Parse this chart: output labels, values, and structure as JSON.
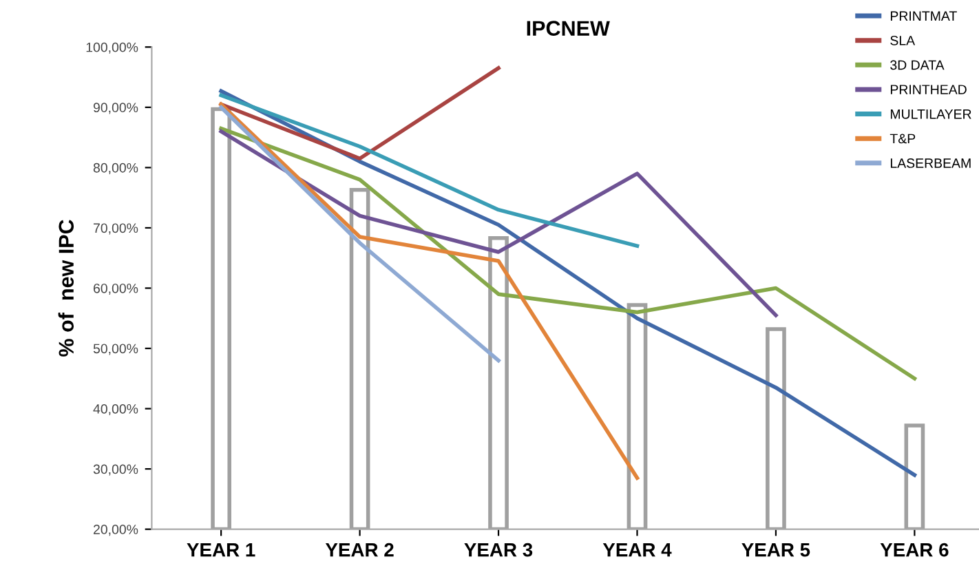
{
  "chart_data": {
    "type": "line",
    "title": "IPCNEW",
    "ylabel": "% of  new IPC",
    "categories": [
      "YEAR 1",
      "YEAR 2",
      "YEAR 3",
      "YEAR 4",
      "YEAR 5",
      "YEAR 6"
    ],
    "ylim": [
      20,
      100
    ],
    "yticks": [
      {
        "value": 20,
        "label": "20,00%"
      },
      {
        "value": 30,
        "label": "30,00%"
      },
      {
        "value": 40,
        "label": "40,00%"
      },
      {
        "value": 50,
        "label": "50,00%"
      },
      {
        "value": 60,
        "label": "60,00%"
      },
      {
        "value": 70,
        "label": "70,00%"
      },
      {
        "value": 80,
        "label": "80,00%"
      },
      {
        "value": 90,
        "label": "90,00%"
      },
      {
        "value": 100,
        "label": "100,00%"
      }
    ],
    "grid": false,
    "legend": "top right",
    "marker": "none",
    "line_style": "solid",
    "series": [
      {
        "type": "bar",
        "color": "#ffffff",
        "values": [
          89.7,
          76.3,
          68.3,
          57.2,
          53.2,
          37.2
        ]
      },
      {
        "name": "PRINTMAT",
        "color": "#4169a8",
        "values": [
          92.7,
          81,
          70.5,
          55,
          43.5,
          29
        ]
      },
      {
        "name": "SLA",
        "color": "#a94442",
        "values": [
          90.5,
          81.5,
          96.5,
          null,
          null,
          null
        ]
      },
      {
        "name": "3D DATA",
        "color": "#86a84a",
        "values": [
          86.5,
          78,
          59,
          56,
          60,
          45
        ]
      },
      {
        "name": "PRINTHEAD",
        "color": "#6e5394",
        "values": [
          86,
          72,
          66,
          79,
          55.5,
          null
        ]
      },
      {
        "name": "MULTILAYER",
        "color": "#3a9db5",
        "values": [
          92,
          83.5,
          73,
          67,
          null,
          null
        ]
      },
      {
        "name": "T&P",
        "color": "#e2843a",
        "values": [
          90.5,
          68.5,
          64.5,
          28.5,
          null,
          null
        ]
      },
      {
        "name": "LASERBEAM",
        "color": "#8ea9d3",
        "values": [
          90,
          67.5,
          48,
          null,
          null,
          null
        ]
      }
    ]
  }
}
